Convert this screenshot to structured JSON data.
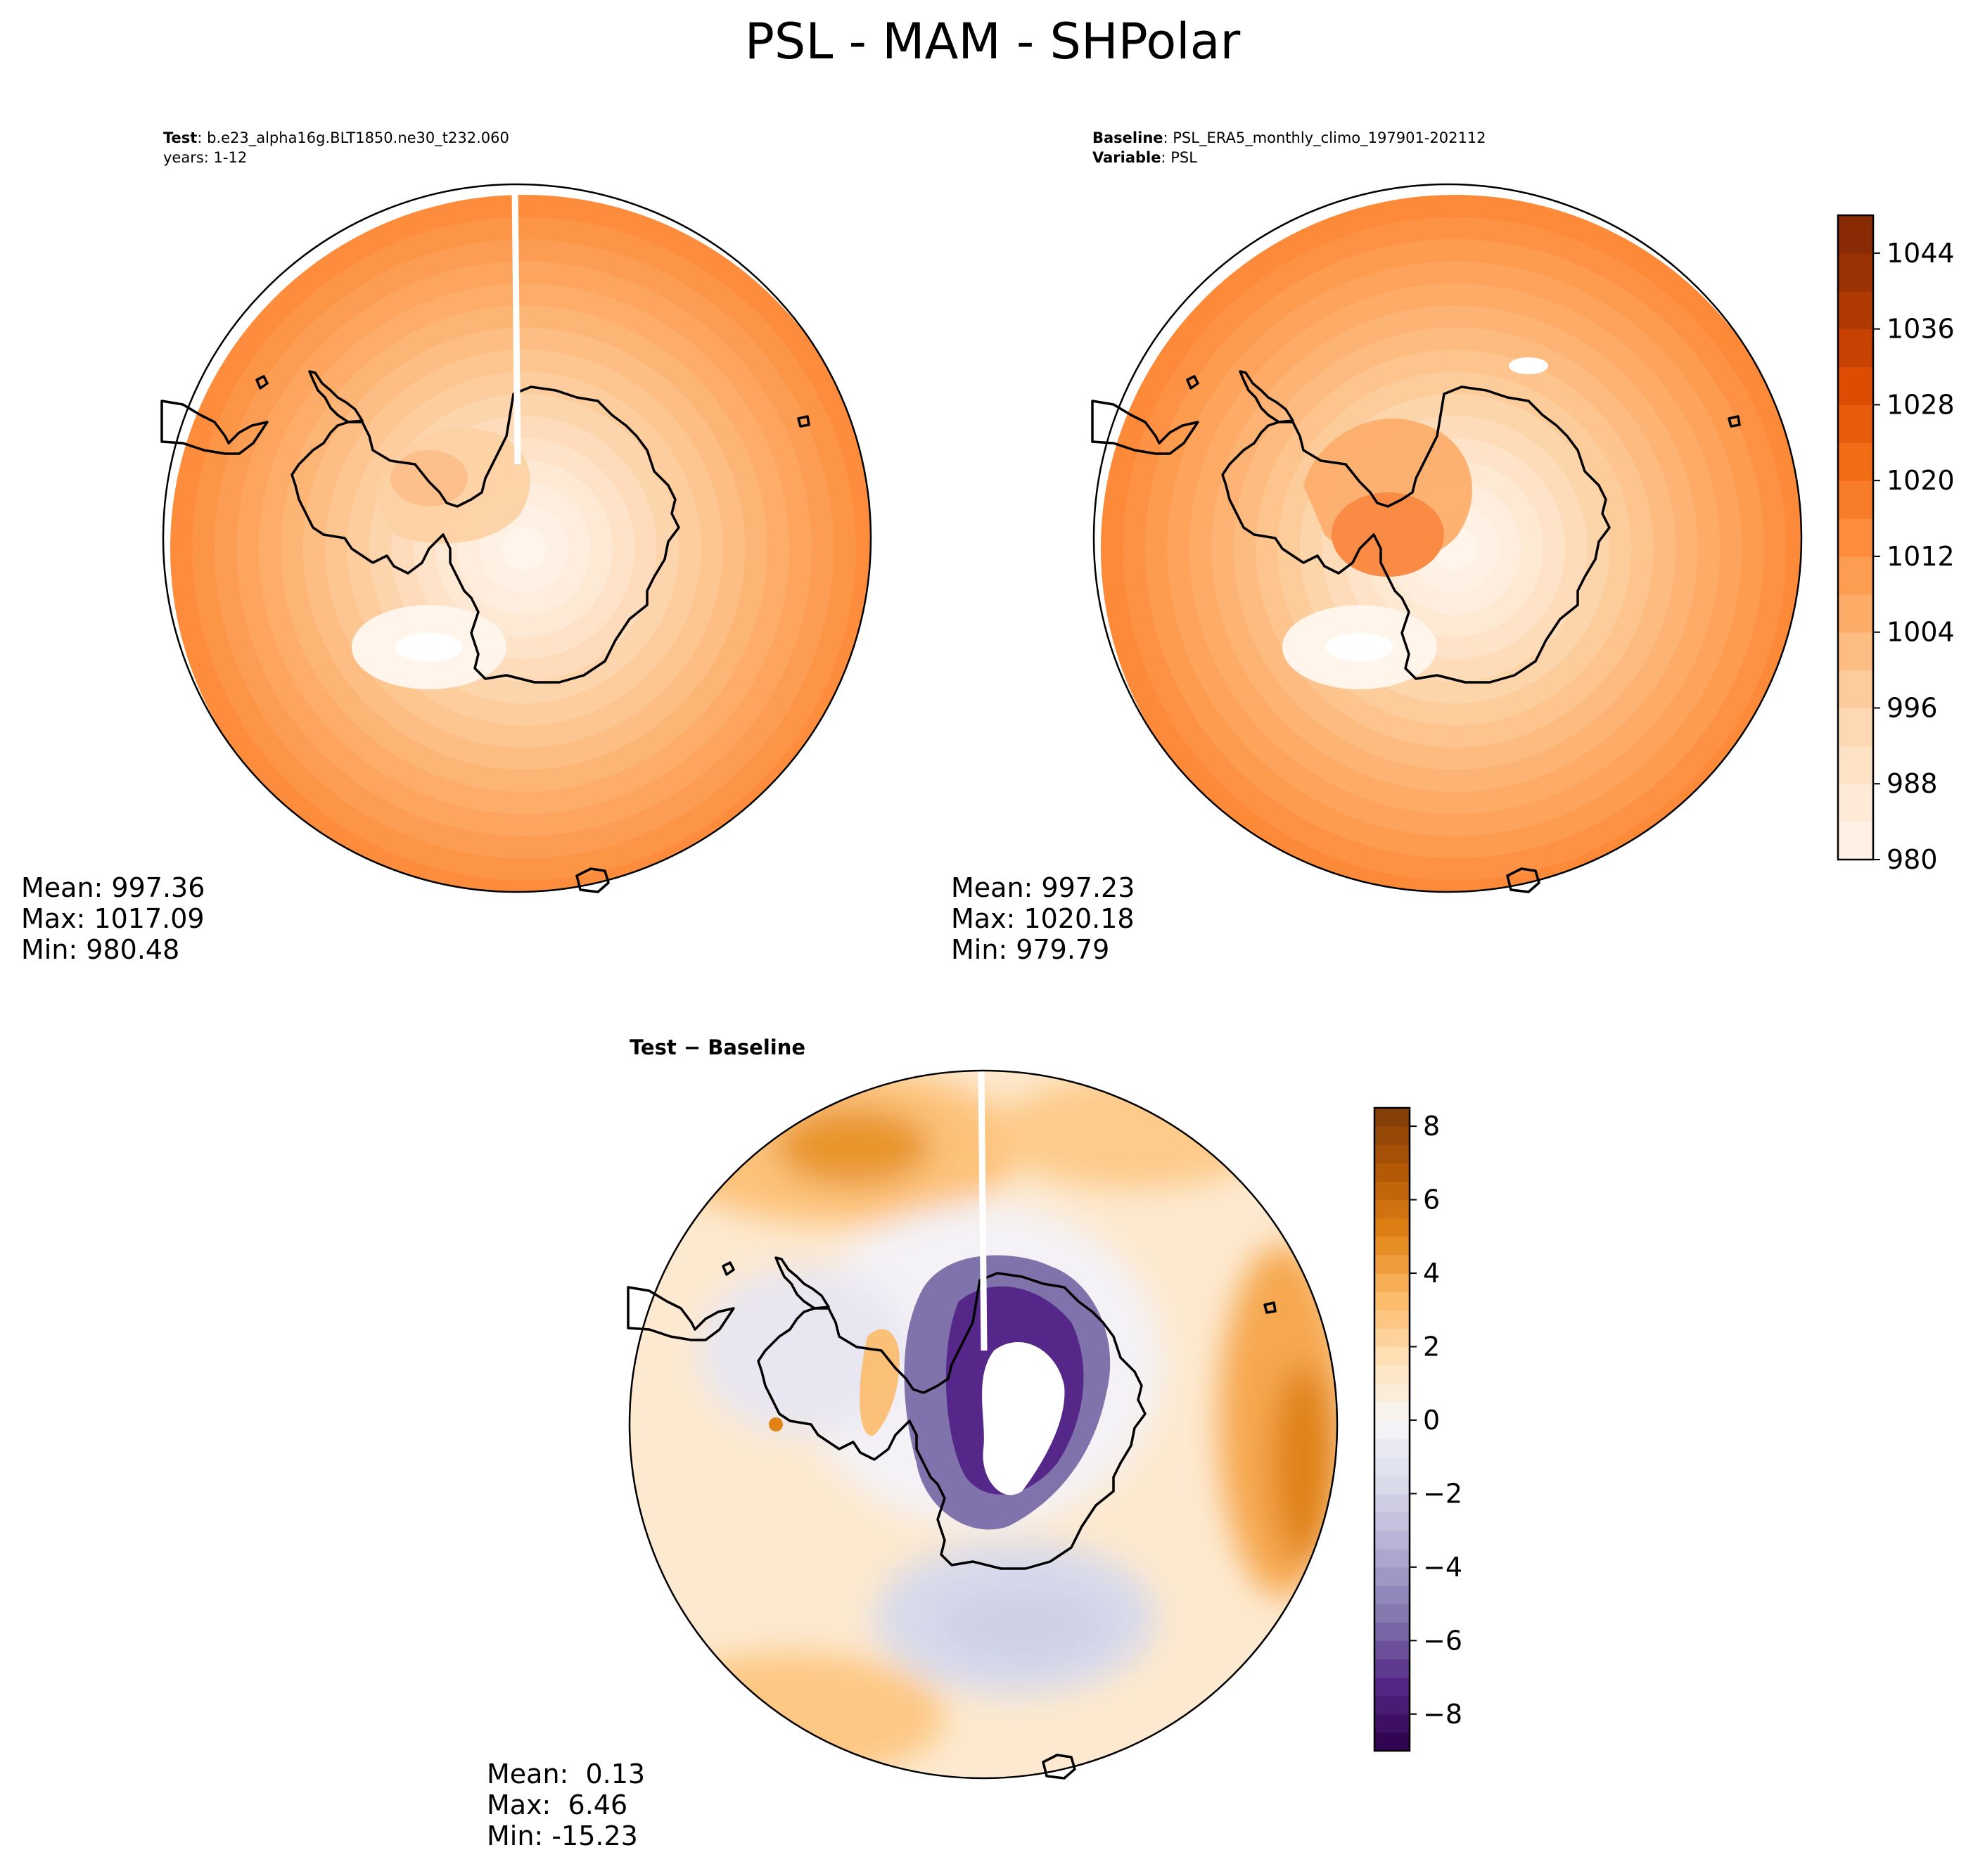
{
  "figure": {
    "title": "PSL - MAM - SHPolar"
  },
  "test_panel": {
    "header_label": "Test",
    "header_value": ": b.e23_alpha16g.BLT1850.ne30_t232.060",
    "header_line2": "years: 1-12",
    "stats": [
      "Mean: 997.36",
      "Max: 1017.09",
      "Min: 980.48"
    ]
  },
  "baseline_panel": {
    "header_label": "Baseline",
    "header_value": ": PSL_ERA5_monthly_climo_197901-202112",
    "header2_label": "Variable",
    "header2_value": ": PSL",
    "stats": [
      "Mean: 997.23",
      "Max: 1020.18",
      "Min: 979.79"
    ]
  },
  "diff_panel": {
    "title_a": "Test",
    "title_op": " − ",
    "title_b": "Baseline",
    "stats": [
      "Mean:  0.13",
      "Max:  6.46",
      "Min: -15.23"
    ]
  },
  "colors": {
    "oranges": [
      "#fff5eb",
      "#fee6ce",
      "#fdd0a2",
      "#fdae6b",
      "#fd8d3c",
      "#f16913",
      "#d94801",
      "#a63603",
      "#7f2704"
    ],
    "puor_neg": [
      "#2d004b",
      "#542788",
      "#8073ac",
      "#b2abd2",
      "#d8daeb",
      "#f7f7f7"
    ],
    "puor_pos": [
      "#f7f7f7",
      "#fee0b6",
      "#fdb863",
      "#e08214",
      "#b35806",
      "#7f3b08"
    ],
    "coastline": "#000000"
  },
  "chart_data": [
    {
      "type": "heatmap",
      "name": "",
      "projection": "south-polar-stereographic",
      "colormap": "Oranges",
      "colorbar_range": [
        980,
        1048
      ],
      "colorbar_ticks": [
        "980",
        "988",
        "996",
        "1004",
        "1012",
        "1020",
        "1028",
        "1036",
        "1044"
      ],
      "mean": 997.36,
      "max": 1017.09,
      "min": 980.48
    },
    {
      "type": "heatmap",
      "name": "",
      "projection": "south-polar-stereographic",
      "colormap": "Oranges",
      "mean": 997.23,
      "max": 1020.18,
      "min": 979.79
    },
    {
      "type": "heatmap",
      "name": "",
      "projection": "south-polar-stereographic",
      "colormap": "PuOr_r",
      "colorbar_range": [
        -9,
        8.5
      ],
      "colorbar_ticks": [
        "8",
        "6",
        "4",
        "2",
        "0",
        "−2",
        "−4",
        "−6",
        "−8"
      ],
      "mean": 0.13,
      "max": 6.46,
      "min": -15.23
    }
  ]
}
